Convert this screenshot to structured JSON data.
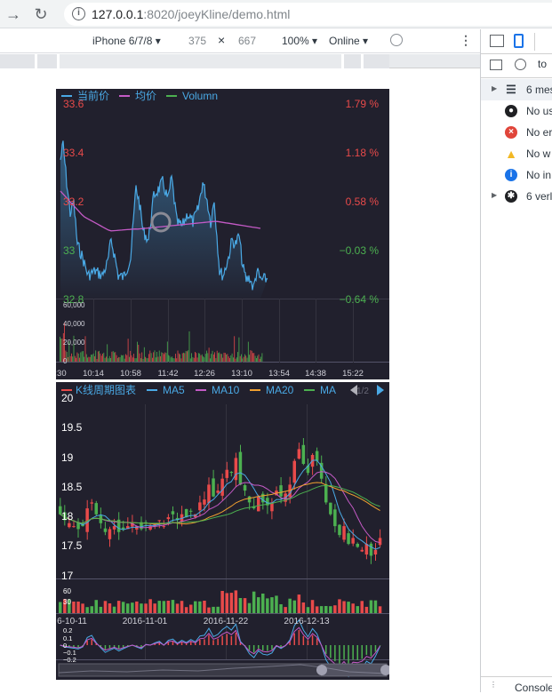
{
  "browser": {
    "url_host": "127.0.0.1",
    "url_rest": ":8020/joeyKline/demo.html"
  },
  "device_toolbar": {
    "device": "iPhone 6/7/8",
    "width": "375",
    "times": "×",
    "height": "667",
    "zoom": "100%",
    "network": "Online"
  },
  "devtools": {
    "top_text": "to",
    "rows": [
      {
        "label": "6 mes",
        "icon": "list-icon",
        "expandable": true
      },
      {
        "label": "No us",
        "icon": "user-icon",
        "expandable": false
      },
      {
        "label": "No er",
        "icon": "error-icon",
        "expandable": false
      },
      {
        "label": "No w",
        "icon": "warning-icon",
        "expandable": false
      },
      {
        "label": "No in",
        "icon": "info-icon",
        "expandable": false
      },
      {
        "label": "6 verl",
        "icon": "bug-icon",
        "expandable": true
      }
    ],
    "footer": "Console"
  },
  "colors": {
    "chart_bg": "#21202d",
    "price": "#4aa9e5",
    "avg": "#c45ac6",
    "up": "#e84a4a",
    "down": "#4cb050",
    "ma5": "#4aa9e5",
    "ma10": "#c45ac6",
    "ma20": "#f0a030",
    "ma30": "#4cb050"
  },
  "timeshare": {
    "legend": [
      "当前价",
      "均价",
      "Volumn"
    ],
    "price_ticks": [
      "33.6",
      "33.4",
      "33.2",
      "33",
      "32.8"
    ],
    "pct_ticks": [
      "1.79 %",
      "1.18 %",
      "0.58 %",
      "−0.03 %",
      "−0.64 %"
    ],
    "vol_ticks": [
      "60,000",
      "40,000",
      "20,000",
      "0"
    ],
    "time_ticks": [
      ":30",
      "10:14",
      "10:58",
      "11:42",
      "12:26",
      "13:10",
      "13:54",
      "14:38",
      "15:22"
    ]
  },
  "kline": {
    "legend": [
      "K线周期图表",
      "MA5",
      "MA10",
      "MA20",
      "MA"
    ],
    "page": "1/2",
    "price_ticks": [
      "20",
      "19.5",
      "19",
      "18.5",
      "18",
      "17.5",
      "17"
    ],
    "vol_ticks": [
      "60",
      "30"
    ],
    "macd_ticks": [
      "0.2",
      "0.1",
      "0",
      "−0.1",
      "−0.2"
    ],
    "date_ticks": [
      "6-10-11",
      "2016-11-01",
      "2016-11-22",
      "2016-12-13"
    ]
  }
}
